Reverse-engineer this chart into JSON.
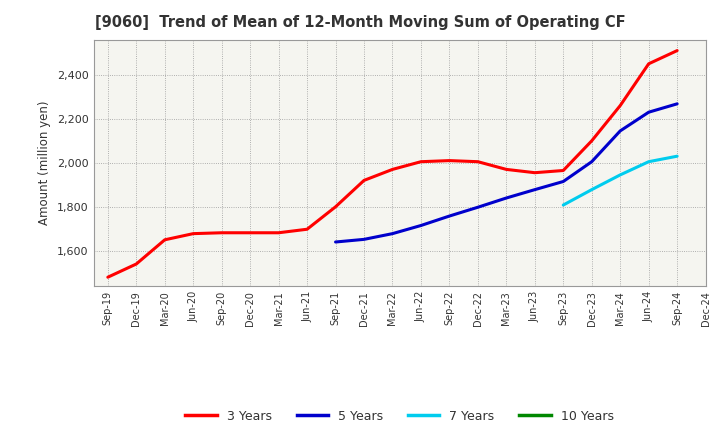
{
  "title": "[9060]  Trend of Mean of 12-Month Moving Sum of Operating CF",
  "ylabel": "Amount (million yen)",
  "background_color": "#ffffff",
  "plot_bg_color": "#f5f5f0",
  "grid_color": "#999999",
  "x_labels": [
    "Sep-19",
    "Dec-19",
    "Mar-20",
    "Jun-20",
    "Sep-20",
    "Dec-20",
    "Mar-21",
    "Jun-21",
    "Sep-21",
    "Dec-21",
    "Mar-22",
    "Jun-22",
    "Sep-22",
    "Dec-22",
    "Mar-23",
    "Jun-23",
    "Sep-23",
    "Dec-23",
    "Mar-24",
    "Jun-24",
    "Sep-24",
    "Dec-24"
  ],
  "series": {
    "3 Years": {
      "color": "#ff0000",
      "data_x": [
        0,
        1,
        2,
        3,
        4,
        5,
        6,
        7,
        8,
        9,
        10,
        11,
        12,
        13,
        14,
        15,
        16,
        17,
        18,
        19,
        20
      ],
      "data_y": [
        1480,
        1540,
        1650,
        1678,
        1682,
        1682,
        1682,
        1698,
        1800,
        1920,
        1970,
        2005,
        2010,
        2005,
        1970,
        1955,
        1965,
        2100,
        2260,
        2450,
        2510
      ]
    },
    "5 Years": {
      "color": "#0000cc",
      "data_x": [
        8,
        9,
        10,
        11,
        12,
        13,
        14,
        15,
        16,
        17,
        18,
        19,
        20
      ],
      "data_y": [
        1640,
        1652,
        1678,
        1715,
        1758,
        1798,
        1840,
        1878,
        1915,
        2005,
        2145,
        2230,
        2268
      ]
    },
    "7 Years": {
      "color": "#00ccee",
      "data_x": [
        16,
        17,
        18,
        19,
        20
      ],
      "data_y": [
        1808,
        1878,
        1945,
        2005,
        2030
      ]
    },
    "10 Years": {
      "color": "#008800",
      "data_x": [],
      "data_y": []
    }
  },
  "ylim": [
    1440,
    2560
  ],
  "yticks": [
    1600,
    1800,
    2000,
    2200,
    2400
  ],
  "legend_labels": [
    "3 Years",
    "5 Years",
    "7 Years",
    "10 Years"
  ],
  "legend_colors": [
    "#ff0000",
    "#0000cc",
    "#00ccee",
    "#008800"
  ]
}
